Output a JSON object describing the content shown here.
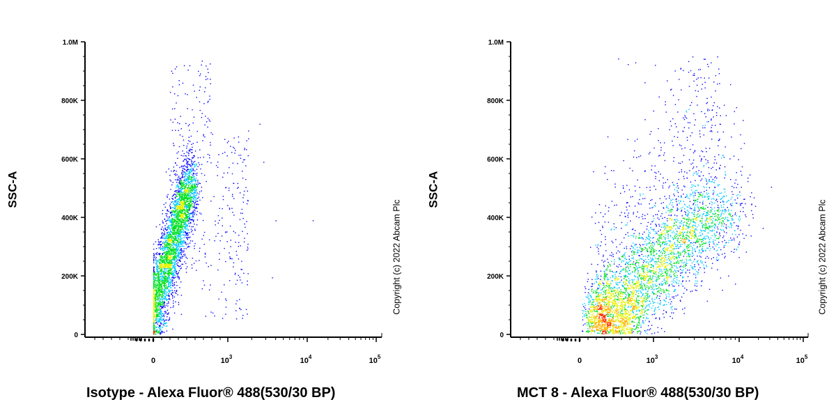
{
  "chart_data": [
    {
      "type": "scatter",
      "title": "",
      "ylabel": "SSC-A",
      "xlabel": "Isotype - Alexa Fluor® 488(530/30 BP)",
      "y_ticks": [
        "0",
        "200K",
        "400K",
        "600K",
        "800K",
        "1.0M"
      ],
      "y_tick_values": [
        0,
        200000,
        400000,
        600000,
        800000,
        1000000
      ],
      "x_ticks": [
        {
          "label": "0",
          "value": 0
        },
        {
          "label": "10",
          "exp": "3",
          "value": 1000
        },
        {
          "label": "10",
          "exp": "4",
          "value": 10000
        },
        {
          "label": "10",
          "exp": "5",
          "value": 100000
        }
      ],
      "ylim": [
        0,
        1000000
      ],
      "xscale": "biexponential",
      "copyright": "Copyright (c) 2022 Abcam Plc",
      "population_clusters": [
        {
          "center_x": 0,
          "center_y": 100000,
          "density": "high"
        },
        {
          "center_x": 150,
          "center_y": 300000,
          "density": "high"
        }
      ]
    },
    {
      "type": "scatter",
      "title": "",
      "ylabel": "SSC-A",
      "xlabel": "MCT 8 - Alexa Fluor® 488(530/30 BP)",
      "y_ticks": [
        "0",
        "200K",
        "400K",
        "600K",
        "800K",
        "1.0M"
      ],
      "y_tick_values": [
        0,
        200000,
        400000,
        600000,
        800000,
        1000000
      ],
      "x_ticks": [
        {
          "label": "0",
          "value": 0
        },
        {
          "label": "10",
          "exp": "3",
          "value": 1000
        },
        {
          "label": "10",
          "exp": "4",
          "value": 10000
        },
        {
          "label": "10",
          "exp": "5",
          "value": 100000
        }
      ],
      "ylim": [
        0,
        1000000
      ],
      "xscale": "biexponential",
      "copyright": "Copyright (c) 2022 Abcam Plc",
      "population_clusters": [
        {
          "center_x": 200,
          "center_y": 50000,
          "density": "medium"
        },
        {
          "center_x": 3000,
          "center_y": 300000,
          "density": "high"
        }
      ]
    }
  ]
}
